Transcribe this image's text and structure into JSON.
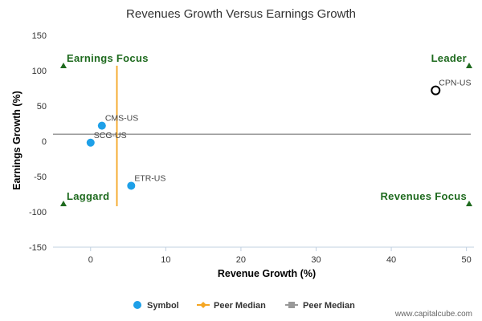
{
  "chart_data": {
    "type": "scatter",
    "title": "Revenues Growth Versus Earnings Growth",
    "xlabel": "Revenue Growth (%)",
    "ylabel": "Earnings Growth (%)",
    "xlim": [
      -5,
      51
    ],
    "ylim": [
      -150,
      150
    ],
    "x_ticks": [
      0,
      10,
      20,
      30,
      40,
      50
    ],
    "y_ticks": [
      150,
      100,
      50,
      0,
      -50,
      -100,
      -150
    ],
    "grid": false,
    "legend_position": "bottom",
    "points": [
      {
        "label": "CMS-US",
        "x": 1.5,
        "y": 22,
        "style": "symbol"
      },
      {
        "label": "SCG-US",
        "x": 0.0,
        "y": -2,
        "style": "symbol"
      },
      {
        "label": "ETR-US",
        "x": 5.4,
        "y": -63,
        "style": "symbol"
      },
      {
        "label": "CPN-US",
        "x": 45.9,
        "y": 72,
        "style": "highlight"
      }
    ],
    "peer_median_x": {
      "value": 3.5,
      "y_range": [
        -92,
        107
      ],
      "color": "#f5a623"
    },
    "peer_median_y": {
      "value": 10,
      "color": "#999999"
    },
    "quadrants": [
      {
        "label": "Earnings Focus",
        "corner": "top-left"
      },
      {
        "label": "Leader",
        "corner": "top-right"
      },
      {
        "label": "Laggard",
        "corner": "bottom-left"
      },
      {
        "label": "Revenues Focus",
        "corner": "bottom-right"
      }
    ],
    "legend": [
      {
        "label": "Symbol",
        "marker": "circle",
        "color": "#1ea0e8"
      },
      {
        "label": "Peer Median",
        "marker": "diamond-line",
        "color": "#f5a623"
      },
      {
        "label": "Peer Median",
        "marker": "square-line",
        "color": "#999999"
      }
    ]
  },
  "colors": {
    "symbol": "#1ea0e8",
    "quadrant_text": "#1e6a1e",
    "axis": "#c0d0e0"
  },
  "watermark": "www.capitalcube.com"
}
